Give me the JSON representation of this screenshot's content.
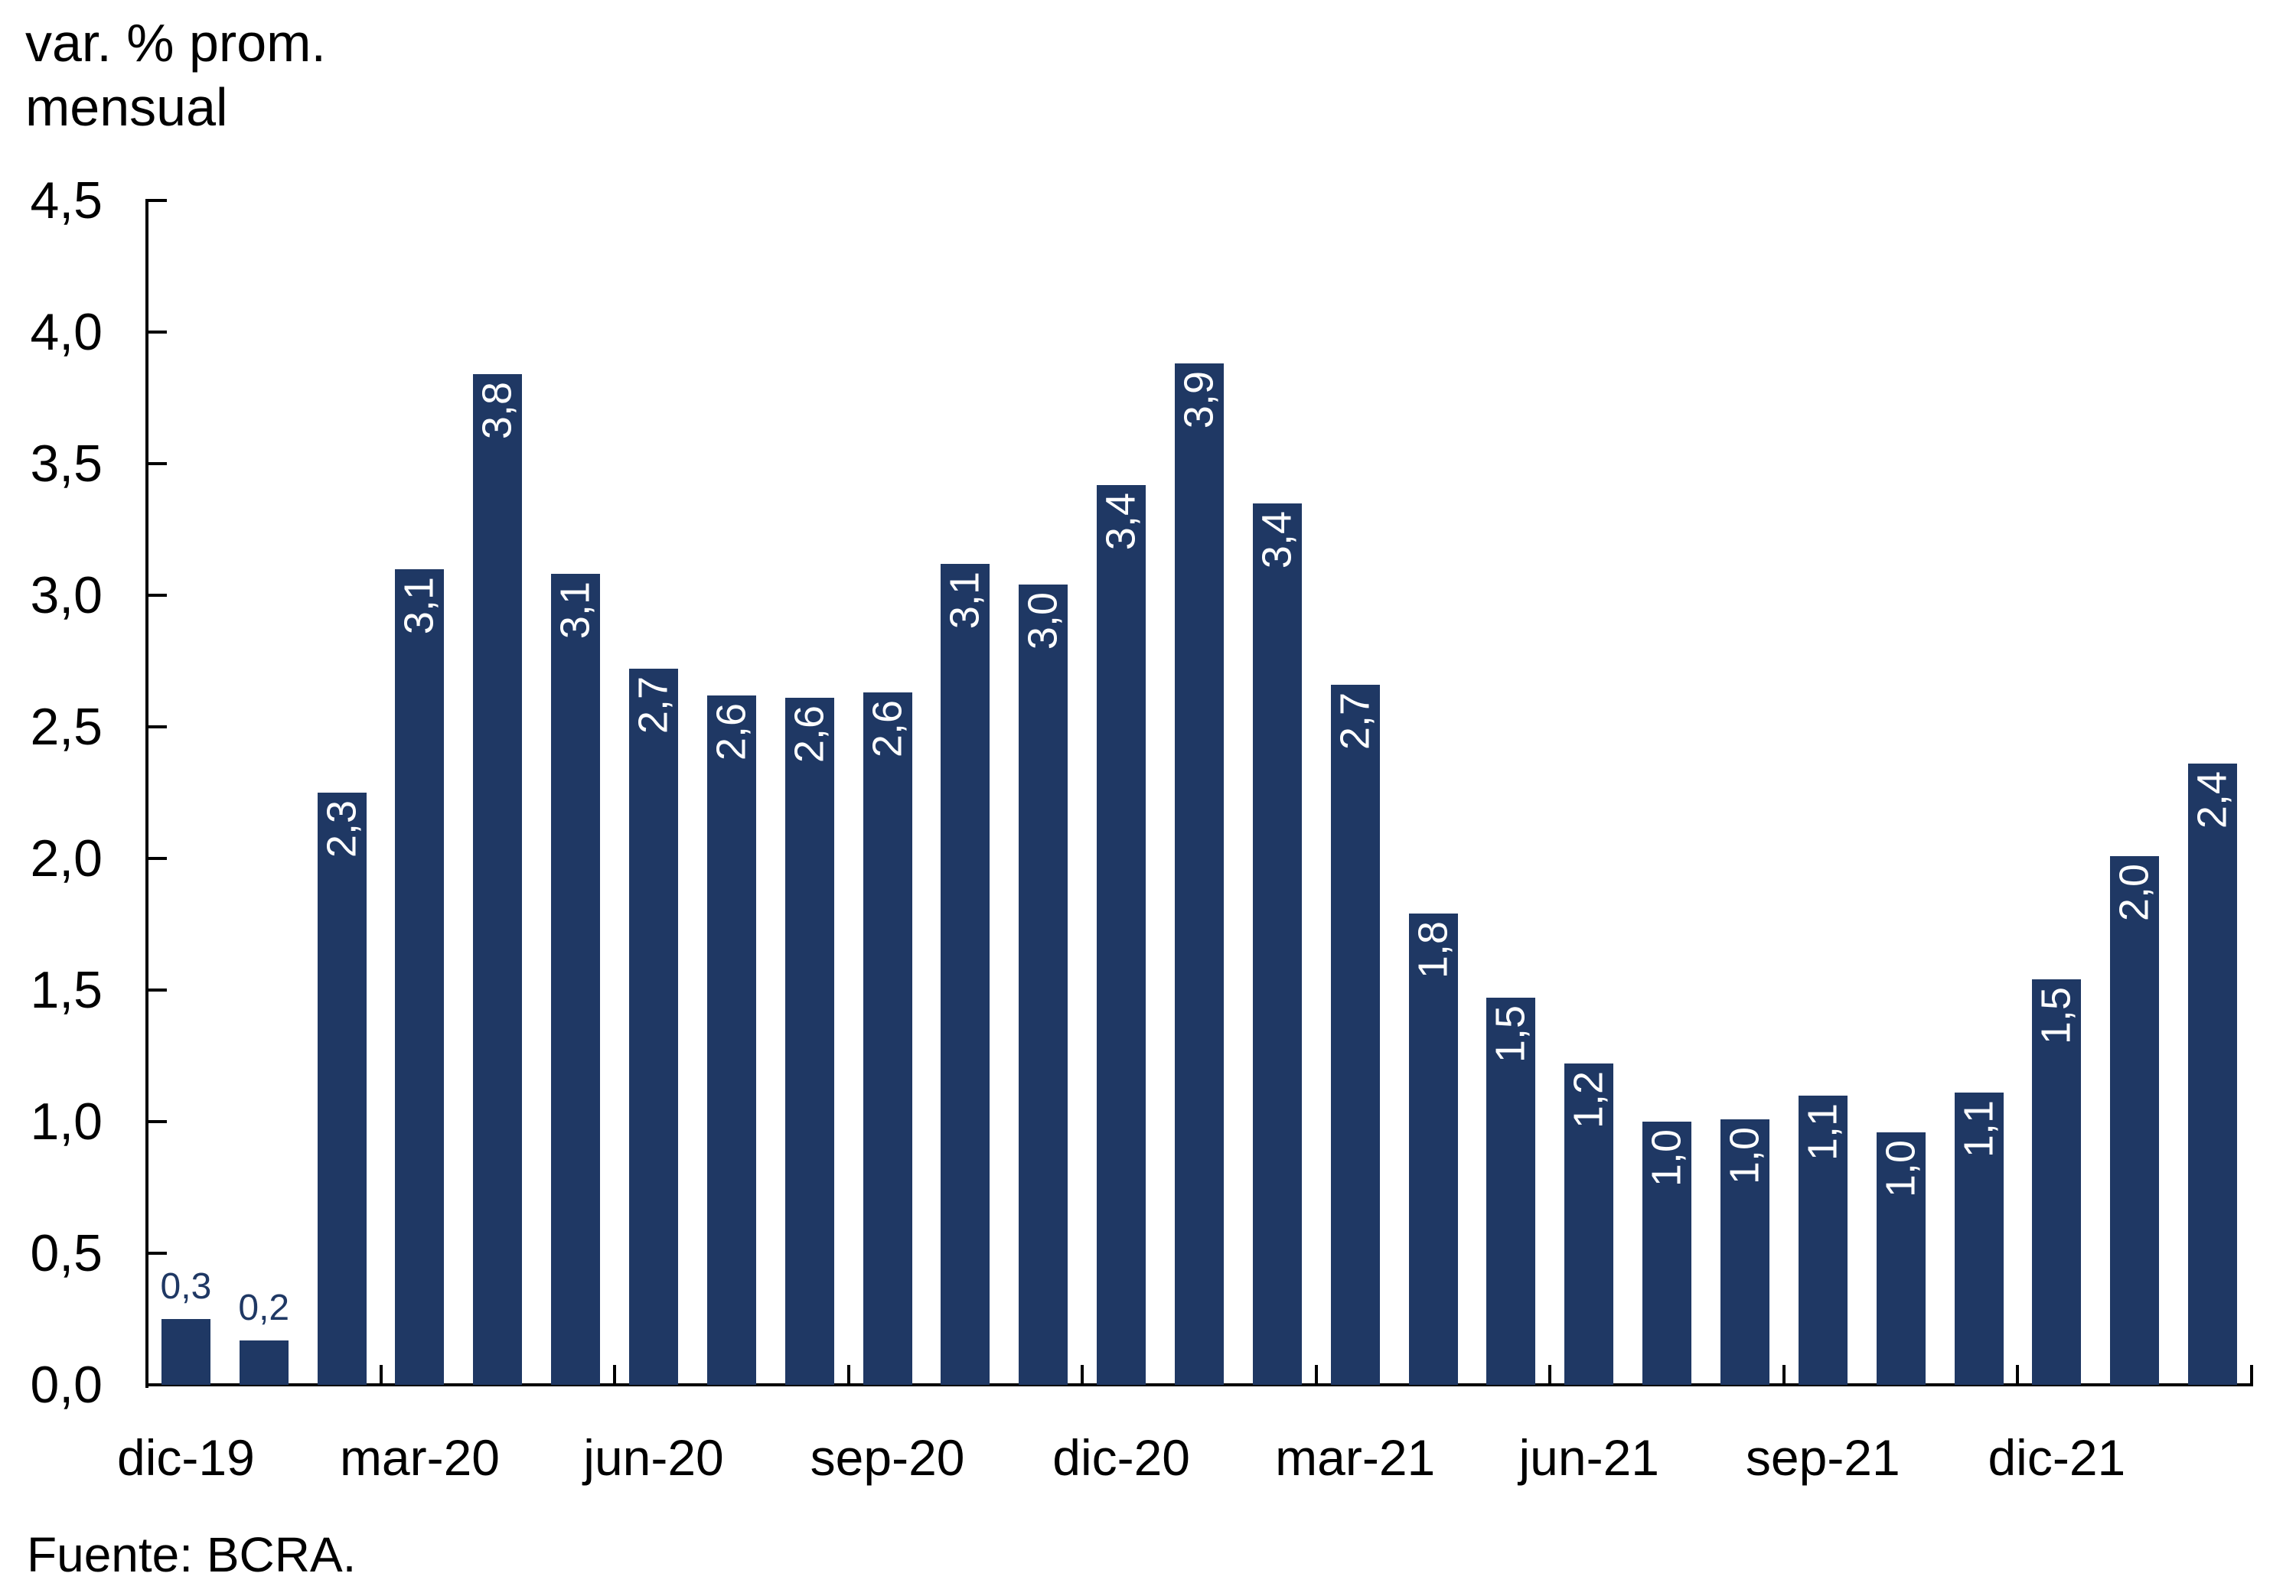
{
  "title": {
    "line1": "var. % prom.",
    "line2": "mensual"
  },
  "source": {
    "text": "Fuente: BCRA."
  },
  "colors": {
    "bar": "#1f3864",
    "axis": "#000000",
    "label_inside": "#ffffff",
    "label_outside": "#1f3864",
    "text": "#000000"
  },
  "chart_data": {
    "type": "bar",
    "title": "var. % prom. mensual",
    "ylabel": "var. % prom. mensual",
    "xlabel": "",
    "ylim": [
      0,
      4.5
    ],
    "ytick_step": 0.5,
    "grid": false,
    "legend": false,
    "bar_labels_rotated": "bottom-to-top",
    "y_ticks": [
      {
        "label": "4,5",
        "value": 4.5
      },
      {
        "label": "4,0",
        "value": 4.0
      },
      {
        "label": "3,5",
        "value": 3.5
      },
      {
        "label": "3,0",
        "value": 3.0
      },
      {
        "label": "2,5",
        "value": 2.5
      },
      {
        "label": "2,0",
        "value": 2.0
      },
      {
        "label": "1,5",
        "value": 1.5
      },
      {
        "label": "1,0",
        "value": 1.0
      },
      {
        "label": "0,5",
        "value": 0.5
      },
      {
        "label": "0,0",
        "value": 0.0
      }
    ],
    "x_tick_labels": [
      "dic-19",
      "mar-20",
      "jun-20",
      "sep-20",
      "dic-20",
      "mar-21",
      "jun-21",
      "sep-21",
      "dic-21"
    ],
    "x_label_every": 3,
    "bars": [
      {
        "label": "0,3",
        "value": 0.25,
        "placement": "outside"
      },
      {
        "label": "0,2",
        "value": 0.17,
        "placement": "outside"
      },
      {
        "label": "2,3",
        "value": 2.25,
        "placement": "inside"
      },
      {
        "label": "3,1",
        "value": 3.1,
        "placement": "inside"
      },
      {
        "label": "3,8",
        "value": 3.84,
        "placement": "inside"
      },
      {
        "label": "3,1",
        "value": 3.08,
        "placement": "inside"
      },
      {
        "label": "2,7",
        "value": 2.72,
        "placement": "inside"
      },
      {
        "label": "2,6",
        "value": 2.62,
        "placement": "inside"
      },
      {
        "label": "2,6",
        "value": 2.61,
        "placement": "inside"
      },
      {
        "label": "2,6",
        "value": 2.63,
        "placement": "inside"
      },
      {
        "label": "3,1",
        "value": 3.12,
        "placement": "inside"
      },
      {
        "label": "3,0",
        "value": 3.04,
        "placement": "inside"
      },
      {
        "label": "3,4",
        "value": 3.42,
        "placement": "inside"
      },
      {
        "label": "3,9",
        "value": 3.88,
        "placement": "inside"
      },
      {
        "label": "3,4",
        "value": 3.35,
        "placement": "inside"
      },
      {
        "label": "2,7",
        "value": 2.66,
        "placement": "inside"
      },
      {
        "label": "1,8",
        "value": 1.79,
        "placement": "inside"
      },
      {
        "label": "1,5",
        "value": 1.47,
        "placement": "inside"
      },
      {
        "label": "1,2",
        "value": 1.22,
        "placement": "inside"
      },
      {
        "label": "1,0",
        "value": 1.0,
        "placement": "inside"
      },
      {
        "label": "1,0",
        "value": 1.01,
        "placement": "inside"
      },
      {
        "label": "1,1",
        "value": 1.1,
        "placement": "inside"
      },
      {
        "label": "1,0",
        "value": 0.96,
        "placement": "inside"
      },
      {
        "label": "1,1",
        "value": 1.11,
        "placement": "inside"
      },
      {
        "label": "1,5",
        "value": 1.54,
        "placement": "inside"
      },
      {
        "label": "2,0",
        "value": 2.01,
        "placement": "inside"
      },
      {
        "label": "2,4",
        "value": 2.36,
        "placement": "inside"
      }
    ]
  }
}
